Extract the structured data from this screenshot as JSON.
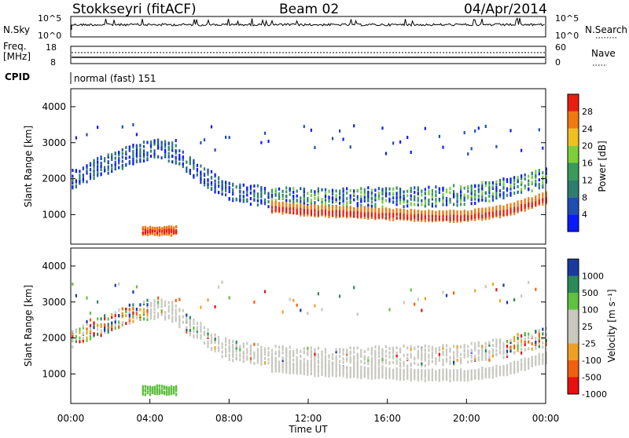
{
  "header": {
    "station": "Stokkseyri (fitACF)",
    "beam": "Beam 02",
    "date": "04/Apr/2014"
  },
  "status_panels": {
    "nsky_label": "N.Sky",
    "nsky_ticks": [
      "10^5",
      "10^0"
    ],
    "nsearch_label": "N.Search",
    "nsearch_ticks": [
      "10^5",
      "10^0"
    ],
    "freq_label_1": "Freq.",
    "freq_label_2": "[MHz]",
    "freq_ticks": [
      "18",
      "8"
    ],
    "nave_label": "Nave",
    "nave_ticks": [
      "60",
      "0"
    ],
    "cpid_label": "CPID",
    "cpid_text": "normal (fast) 151"
  },
  "colors": {
    "power_scale": [
      "#0a1aff",
      "#1e4fb0",
      "#2f7d6e",
      "#3a9a5a",
      "#7ccf3a",
      "#f0c020",
      "#f07a10",
      "#e81e10"
    ],
    "velocity_scale": [
      "#e81010",
      "#f06010",
      "#f0a020",
      "#c8c8c0",
      "#c8c8c0",
      "#60c040",
      "#2a8a5a",
      "#1a3aa0"
    ],
    "ground_scatter": "#c8c8c0"
  },
  "chart_data": [
    {
      "type": "heatmap",
      "panel": "power",
      "ylabel": "Slant Range [km]",
      "yticks": [
        "1000",
        "2000",
        "3000",
        "4000"
      ],
      "ylim": [
        180,
        4500
      ],
      "xlim_hours": [
        0,
        24
      ],
      "colorbar": {
        "label": "Power [dB]",
        "ticks": [
          "4",
          "8",
          "12",
          "16",
          "20",
          "24",
          "28"
        ],
        "range": [
          0,
          32
        ]
      },
      "series": [
        {
          "name": "",
          "time": [
            "00:00",
            "01:00",
            "02:00",
            "03:00",
            "04:00",
            "04:30",
            "05:00",
            "06:00",
            "07:00",
            "08:00",
            "10:00",
            "12:00",
            "14:00",
            "16:00",
            "18:00",
            "20:00",
            "22:00",
            "24:00"
          ],
          "range_km": [
            2000,
            2300,
            2500,
            2700,
            2850,
            2900,
            2800,
            2400,
            2000,
            1700,
            1550,
            1500,
            1500,
            1550,
            1550,
            1600,
            1800,
            2100
          ]
        },
        {
          "name": "",
          "time": [
            "10:00",
            "12:00",
            "14:00",
            "16:00",
            "18:00",
            "20:00",
            "22:00",
            "24:00"
          ],
          "range_km": [
            1250,
            1150,
            1100,
            1050,
            1000,
            1000,
            1150,
            1500
          ]
        }
      ]
    },
    {
      "type": "heatmap",
      "panel": "velocity",
      "ylabel": "Slant Range [km]",
      "yticks": [
        "1000",
        "2000",
        "3000",
        "4000"
      ],
      "ylim": [
        180,
        4500
      ],
      "xlim_hours": [
        0,
        24
      ],
      "xticks": [
        "00:00",
        "04:00",
        "08:00",
        "12:00",
        "16:00",
        "20:00",
        "00:00"
      ],
      "xlabel": "Time UT",
      "colorbar": {
        "label": "Velocity [m s⁻¹]",
        "ticks": [
          "1000",
          "500",
          "100",
          "25",
          "-25",
          "-100",
          "-500",
          "-1000"
        ]
      }
    }
  ]
}
